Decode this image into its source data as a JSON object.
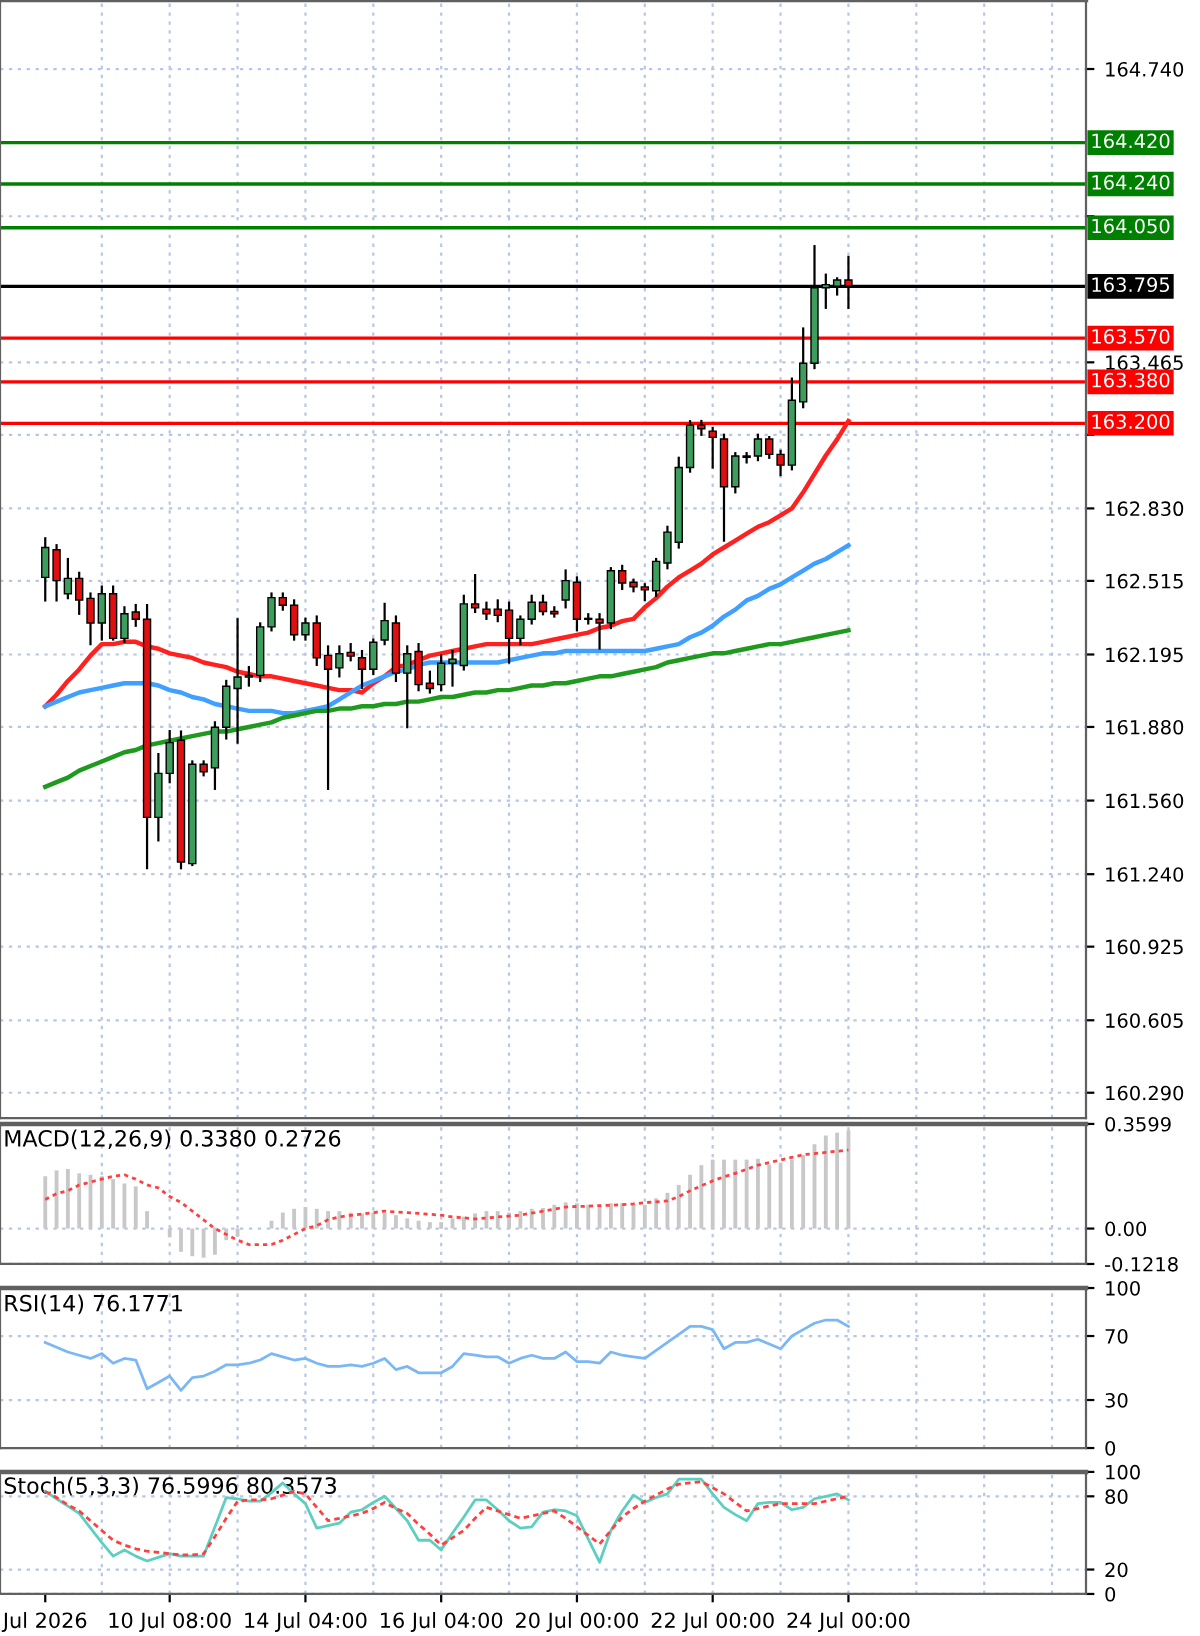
{
  "chart_data": [
    {
      "type": "candlestick",
      "categories": [
        null,
        null,
        null,
        null,
        null,
        null,
        null,
        null,
        null,
        null,
        null,
        null,
        null,
        null,
        null,
        null,
        null,
        null,
        null,
        null,
        null,
        null,
        null,
        null,
        null,
        null,
        null,
        null,
        null,
        null,
        null,
        null,
        null,
        null,
        null,
        null,
        null,
        null,
        null,
        null,
        null,
        null,
        null,
        null,
        null,
        null,
        null,
        null,
        null,
        null,
        null,
        null,
        null,
        null,
        null,
        null,
        null,
        null,
        null,
        null,
        null,
        null,
        null,
        null,
        null,
        null,
        null,
        null,
        null,
        null,
        null,
        null
      ],
      "ohlc": [
        [
          162.53,
          162.7,
          162.43,
          162.66
        ],
        [
          162.65,
          162.67,
          162.43,
          162.516
        ],
        [
          162.459,
          162.61,
          162.44,
          162.526
        ],
        [
          162.526,
          162.55,
          162.372,
          162.432
        ],
        [
          162.439,
          162.46,
          162.24,
          162.332
        ],
        [
          162.332,
          162.49,
          162.26,
          162.459
        ],
        [
          162.459,
          162.49,
          162.26,
          162.265
        ],
        [
          162.265,
          162.4,
          162.25,
          162.372
        ],
        [
          162.38,
          162.41,
          162.32,
          162.348
        ],
        [
          162.348,
          162.41,
          161.266,
          161.487
        ],
        [
          161.487,
          161.762,
          161.387,
          161.678
        ],
        [
          161.678,
          161.862,
          161.64,
          161.812
        ],
        [
          161.822,
          161.86,
          161.266,
          161.293
        ],
        [
          161.286,
          161.73,
          161.28,
          161.718
        ],
        [
          161.718,
          161.73,
          161.67,
          161.685
        ],
        [
          161.702,
          161.9,
          161.611,
          161.879
        ],
        [
          161.879,
          162.08,
          161.83,
          162.057
        ],
        [
          162.047,
          162.348,
          161.812,
          162.097
        ],
        [
          162.097,
          162.14,
          162.06,
          162.104
        ],
        [
          162.104,
          162.33,
          162.08,
          162.315
        ],
        [
          162.315,
          162.46,
          162.3,
          162.442
        ],
        [
          162.442,
          162.46,
          162.39,
          162.409
        ],
        [
          162.409,
          162.43,
          162.26,
          162.281
        ],
        [
          162.281,
          162.35,
          162.26,
          162.332
        ],
        [
          162.332,
          162.36,
          162.15,
          162.181
        ],
        [
          162.191,
          162.23,
          161.611,
          162.131
        ],
        [
          162.137,
          162.23,
          162.1,
          162.198
        ],
        [
          162.204,
          162.24,
          162.17,
          162.188
        ],
        [
          162.181,
          162.21,
          162.05,
          162.131
        ],
        [
          162.131,
          162.26,
          162.11,
          162.248
        ],
        [
          162.258,
          162.415,
          162.24,
          162.342
        ],
        [
          162.332,
          162.36,
          162.08,
          162.114
        ],
        [
          162.114,
          162.23,
          161.879,
          162.198
        ],
        [
          162.208,
          162.24,
          162.04,
          162.064
        ],
        [
          162.07,
          162.12,
          162.03,
          162.047
        ],
        [
          162.064,
          162.19,
          162.04,
          162.157
        ],
        [
          162.157,
          162.21,
          162.06,
          162.175
        ],
        [
          162.147,
          162.45,
          162.13,
          162.415
        ],
        [
          162.415,
          162.54,
          162.38,
          162.398
        ],
        [
          162.392,
          162.42,
          162.35,
          162.372
        ],
        [
          162.392,
          162.43,
          162.34,
          162.365
        ],
        [
          162.388,
          162.42,
          162.16,
          162.265
        ],
        [
          162.265,
          162.36,
          162.24,
          162.348
        ],
        [
          162.348,
          162.45,
          162.33,
          162.422
        ],
        [
          162.422,
          162.45,
          162.37,
          162.382
        ],
        [
          162.382,
          162.4,
          162.36,
          162.372
        ],
        [
          162.432,
          162.56,
          162.4,
          162.516
        ],
        [
          162.509,
          162.53,
          162.3,
          162.348
        ],
        [
          162.352,
          162.37,
          162.33,
          162.348
        ],
        [
          162.348,
          162.37,
          162.221,
          162.332
        ],
        [
          162.332,
          162.57,
          162.31,
          162.559
        ],
        [
          162.559,
          162.58,
          162.48,
          162.506
        ],
        [
          162.509,
          162.52,
          162.47,
          162.489
        ],
        [
          162.489,
          162.5,
          162.432,
          162.476
        ],
        [
          162.472,
          162.61,
          162.45,
          162.6
        ],
        [
          162.593,
          162.75,
          162.57,
          162.727
        ],
        [
          162.683,
          163.05,
          162.66,
          163.008
        ],
        [
          163.008,
          163.209,
          162.99,
          163.192
        ],
        [
          163.192,
          163.21,
          163.15,
          163.176
        ],
        [
          163.166,
          163.18,
          163.008,
          163.139
        ],
        [
          163.132,
          163.15,
          162.69,
          162.924
        ],
        [
          162.924,
          163.07,
          162.9,
          163.058
        ],
        [
          163.052,
          163.07,
          163.03,
          163.058
        ],
        [
          163.058,
          163.15,
          163.04,
          163.132
        ],
        [
          163.132,
          163.14,
          163.05,
          163.065
        ],
        [
          163.065,
          163.08,
          162.975,
          163.018
        ],
        [
          163.018,
          163.394,
          163.0,
          163.3
        ],
        [
          163.293,
          163.612,
          163.27,
          163.461
        ],
        [
          163.461,
          163.97,
          163.44,
          163.789
        ],
        [
          163.789,
          163.846,
          163.702,
          163.803
        ],
        [
          163.796,
          163.83,
          163.76,
          163.823
        ],
        [
          163.823,
          163.923,
          163.702,
          163.796
        ]
      ],
      "colors": [
        "#3c9d5d",
        "#e01010",
        "#3c9d5d",
        "#e01010",
        "#e01010",
        "#3c9d5d",
        "#e01010",
        "#3c9d5d",
        "#e01010",
        "#e01010",
        "#3c9d5d",
        "#3c9d5d",
        "#e01010",
        "#3c9d5d",
        "#e01010",
        "#3c9d5d",
        "#3c9d5d",
        "#3c9d5d",
        "#3c9d5d",
        "#3c9d5d",
        "#3c9d5d",
        "#e01010",
        "#e01010",
        "#3c9d5d",
        "#e01010",
        "#e01010",
        "#3c9d5d",
        "#e01010",
        "#e01010",
        "#3c9d5d",
        "#3c9d5d",
        "#e01010",
        "#3c9d5d",
        "#e01010",
        "#e01010",
        "#3c9d5d",
        "#3c9d5d",
        "#3c9d5d",
        "#e01010",
        "#e01010",
        "#e01010",
        "#e01010",
        "#3c9d5d",
        "#3c9d5d",
        "#e01010",
        "#e01010",
        "#3c9d5d",
        "#e01010",
        "#e01010",
        "#e01010",
        "#3c9d5d",
        "#e01010",
        "#e01010",
        "#e01010",
        "#3c9d5d",
        "#3c9d5d",
        "#3c9d5d",
        "#3c9d5d",
        "#e01010",
        "#e01010",
        "#e01010",
        "#3c9d5d",
        "#3c9d5d",
        "#3c9d5d",
        "#e01010",
        "#e01010",
        "#3c9d5d",
        "#3c9d5d",
        "#3c9d5d",
        "#3c9d5d",
        "#3c9d5d",
        "#e01010"
      ],
      "series": [
        {
          "type": "line",
          "color": "#ff2020",
          "values": [
            161.97,
            162.02,
            162.08,
            162.13,
            162.19,
            162.24,
            162.24,
            162.25,
            162.25,
            162.23,
            162.22,
            162.2,
            162.19,
            162.18,
            162.16,
            162.15,
            162.14,
            162.12,
            162.11,
            162.1,
            162.1,
            162.09,
            162.08,
            162.07,
            162.06,
            162.05,
            162.04,
            162.04,
            162.03,
            162.07,
            162.1,
            162.14,
            162.15,
            162.17,
            162.19,
            162.2,
            162.21,
            162.22,
            162.23,
            162.24,
            162.24,
            162.24,
            162.24,
            162.24,
            162.25,
            162.26,
            162.27,
            162.28,
            162.29,
            162.31,
            162.32,
            162.34,
            162.35,
            162.4,
            162.44,
            162.49,
            162.53,
            162.56,
            162.59,
            162.63,
            162.66,
            162.69,
            162.72,
            162.75,
            162.77,
            162.8,
            162.83,
            162.9,
            162.98,
            163.06,
            163.13,
            163.21
          ]
        },
        {
          "type": "line",
          "color": "#40a0ff",
          "values": [
            161.97,
            161.99,
            162.01,
            162.03,
            162.04,
            162.05,
            162.06,
            162.07,
            162.07,
            162.07,
            162.06,
            162.04,
            162.03,
            162.01,
            162.0,
            161.98,
            161.97,
            161.96,
            161.95,
            161.95,
            161.95,
            161.94,
            161.94,
            161.95,
            161.96,
            161.97,
            162.0,
            162.03,
            162.06,
            162.08,
            162.1,
            162.12,
            162.13,
            162.15,
            162.16,
            162.16,
            162.16,
            162.16,
            162.16,
            162.16,
            162.16,
            162.17,
            162.18,
            162.19,
            162.2,
            162.2,
            162.21,
            162.21,
            162.21,
            162.21,
            162.21,
            162.21,
            162.21,
            162.21,
            162.22,
            162.23,
            162.24,
            162.27,
            162.29,
            162.32,
            162.36,
            162.39,
            162.43,
            162.45,
            162.48,
            162.5,
            162.53,
            162.56,
            162.59,
            162.61,
            162.64,
            162.67
          ]
        },
        {
          "type": "line",
          "color": "#1f9a1f",
          "values": [
            161.62,
            161.64,
            161.66,
            161.69,
            161.71,
            161.73,
            161.75,
            161.77,
            161.78,
            161.8,
            161.81,
            161.82,
            161.83,
            161.84,
            161.85,
            161.86,
            161.86,
            161.87,
            161.88,
            161.89,
            161.9,
            161.92,
            161.93,
            161.94,
            161.95,
            161.95,
            161.96,
            161.96,
            161.97,
            161.97,
            161.98,
            161.98,
            161.99,
            161.99,
            162.0,
            162.01,
            162.01,
            162.02,
            162.03,
            162.03,
            162.04,
            162.04,
            162.05,
            162.06,
            162.06,
            162.07,
            162.07,
            162.08,
            162.09,
            162.1,
            162.1,
            162.11,
            162.12,
            162.13,
            162.14,
            162.16,
            162.17,
            162.18,
            162.19,
            162.2,
            162.2,
            162.21,
            162.22,
            162.23,
            162.24,
            162.24,
            162.25,
            162.26,
            162.27,
            162.28,
            162.29,
            162.3
          ]
        }
      ],
      "ref_lines": [
        {
          "axis": "y",
          "value": 164.42,
          "label": "164.420",
          "color": "#008000"
        },
        {
          "axis": "y",
          "value": 164.24,
          "label": "164.240",
          "color": "#008000"
        },
        {
          "axis": "y",
          "value": 164.05,
          "label": "164.050",
          "color": "#008000"
        },
        {
          "axis": "y",
          "value": 163.795,
          "label": "163.795",
          "color": "#000000"
        },
        {
          "axis": "y",
          "value": 163.57,
          "label": "163.570",
          "color": "#ff0000"
        },
        {
          "axis": "y",
          "value": 163.38,
          "label": "163.380",
          "color": "#ff0000"
        },
        {
          "axis": "y",
          "value": 163.2,
          "label": "163.200",
          "color": "#ff0000"
        }
      ],
      "ylim": [
        160.18,
        165.04
      ],
      "yticks": [
        {
          "value": 164.74,
          "label": "164.740"
        },
        {
          "value": 164.1,
          "label": null
        },
        {
          "value": 163.465,
          "label": "163.465"
        },
        {
          "value": 163.15,
          "label": null
        },
        {
          "value": 162.83,
          "label": "162.830"
        },
        {
          "value": 162.515,
          "label": "162.515"
        },
        {
          "value": 162.195,
          "label": "162.195"
        },
        {
          "value": 161.88,
          "label": "161.880"
        },
        {
          "value": 161.56,
          "label": "161.560"
        },
        {
          "value": 161.24,
          "label": "161.240"
        },
        {
          "value": 160.925,
          "label": "160.925"
        },
        {
          "value": 160.605,
          "label": "160.605"
        },
        {
          "value": 160.29,
          "label": "160.290"
        }
      ],
      "grid": true,
      "tick_labels": "y"
    },
    {
      "type": "bar",
      "title": "MACD(12,26,9) 0.3380 0.2726",
      "categories": [
        null,
        null,
        null,
        null,
        null,
        null,
        null,
        null,
        null,
        null,
        null,
        null,
        null,
        null,
        null,
        null,
        null,
        null,
        null,
        null,
        null,
        null,
        null,
        null,
        null,
        null,
        null,
        null,
        null,
        null,
        null,
        null,
        null,
        null,
        null,
        null,
        null,
        null,
        null,
        null,
        null,
        null,
        null,
        null,
        null,
        null,
        null,
        null,
        null,
        null,
        null,
        null,
        null,
        null,
        null,
        null,
        null,
        null,
        null,
        null,
        null,
        null,
        null,
        null,
        null,
        null,
        null,
        null,
        null,
        null,
        null,
        null
      ],
      "series": [
        {
          "type": "bar",
          "color": "#c8c8c8",
          "values": [
            0.18,
            0.2,
            0.205,
            0.19,
            0.185,
            0.18,
            0.17,
            0.155,
            0.145,
            0.06,
            null,
            -0.03,
            -0.08,
            -0.095,
            -0.1,
            -0.09,
            -0.04,
            -0.027,
            null,
            null,
            0.027,
            0.055,
            0.068,
            0.074,
            0.068,
            0.06,
            0.06,
            0.055,
            0.052,
            0.055,
            0.055,
            0.046,
            0.035,
            0.027,
            0.022,
            0.022,
            0.035,
            0.041,
            0.052,
            0.06,
            0.06,
            0.055,
            0.06,
            0.068,
            0.071,
            0.082,
            0.09,
            0.087,
            0.082,
            0.076,
            0.087,
            0.087,
            0.082,
            0.082,
            0.104,
            0.123,
            0.15,
            0.185,
            0.218,
            0.237,
            0.237,
            0.237,
            0.237,
            0.24,
            0.22,
            0.226,
            0.237,
            0.253,
            0.29,
            0.32,
            0.33,
            0.338
          ]
        },
        {
          "type": "line",
          "color": "#ff4040",
          "line_style": "dotted",
          "values": [
            0.1,
            0.12,
            0.13,
            0.15,
            0.16,
            0.17,
            0.18,
            0.185,
            0.17,
            0.15,
            0.14,
            0.11,
            0.09,
            0.06,
            0.03,
            0.0,
            -0.02,
            -0.04,
            -0.055,
            -0.055,
            -0.055,
            -0.04,
            -0.02,
            0.0,
            0.01,
            0.03,
            0.04,
            0.045,
            0.05,
            0.055,
            0.06,
            0.057,
            0.055,
            0.052,
            0.049,
            0.046,
            0.04,
            0.037,
            0.033,
            0.036,
            0.04,
            0.043,
            0.046,
            0.053,
            0.06,
            0.067,
            0.074,
            0.076,
            0.077,
            0.079,
            0.08,
            0.082,
            0.085,
            0.089,
            0.092,
            0.095,
            0.11,
            0.13,
            0.147,
            0.164,
            0.178,
            0.19,
            0.204,
            0.218,
            0.227,
            0.236,
            0.245,
            0.254,
            0.258,
            0.262,
            0.266,
            0.27
          ]
        }
      ],
      "ylim": [
        -0.1218,
        0.3599
      ],
      "yticks": [
        0.3599,
        {
          "value": 0,
          "label": "0.00"
        },
        -0.1218
      ],
      "grid": true,
      "tick_labels": "y"
    },
    {
      "type": "line",
      "title": "RSI(14) 76.1771",
      "categories": [
        null,
        null,
        null,
        null,
        null,
        null,
        null,
        null,
        null,
        null,
        null,
        null,
        null,
        null,
        null,
        null,
        null,
        null,
        null,
        null,
        null,
        null,
        null,
        null,
        null,
        null,
        null,
        null,
        null,
        null,
        null,
        null,
        null,
        null,
        null,
        null,
        null,
        null,
        null,
        null,
        null,
        null,
        null,
        null,
        null,
        null,
        null,
        null,
        null,
        null,
        null,
        null,
        null,
        null,
        null,
        null,
        null,
        null,
        null,
        null,
        null,
        null,
        null,
        null,
        null,
        null,
        null,
        null,
        null,
        null,
        null,
        null
      ],
      "series": [
        {
          "type": "line",
          "color": "#7ab8f5",
          "values": [
            66,
            63,
            60,
            58,
            56,
            59,
            53,
            56,
            55,
            37,
            41,
            45,
            36,
            44,
            45,
            48,
            52,
            52,
            53,
            55,
            59,
            57,
            55,
            56,
            53,
            51,
            51,
            52,
            51,
            53,
            56,
            49,
            51,
            47,
            47,
            47,
            51,
            59,
            58,
            57,
            57,
            53,
            56,
            58,
            56,
            56,
            60,
            54,
            54,
            53,
            60,
            58,
            57,
            56,
            61,
            66,
            71,
            76,
            76,
            74,
            62,
            66,
            66,
            68,
            65,
            62,
            70,
            74,
            78,
            80,
            80,
            76
          ]
        }
      ],
      "ylim": [
        0,
        100
      ],
      "yticks": [
        100,
        70,
        30,
        0
      ],
      "grid": true,
      "tick_labels": "y"
    },
    {
      "type": "line",
      "title": "Stoch(5,3,3) 76.5996 80.3573",
      "categories": [
        "Jul 2026",
        null,
        null,
        null,
        null,
        null,
        null,
        null,
        null,
        null,
        null,
        "10 Jul 08:00",
        null,
        null,
        null,
        null,
        null,
        null,
        null,
        null,
        null,
        null,
        null,
        "14 Jul 04:00",
        null,
        null,
        null,
        null,
        null,
        null,
        null,
        null,
        null,
        null,
        null,
        "16 Jul 04:00",
        null,
        null,
        null,
        null,
        null,
        null,
        null,
        null,
        null,
        null,
        null,
        "20 Jul 00:00",
        null,
        null,
        null,
        null,
        null,
        null,
        null,
        null,
        null,
        null,
        null,
        "22 Jul 00:00",
        null,
        null,
        null,
        null,
        null,
        null,
        null,
        null,
        null,
        null,
        null,
        "24 Jul 00:00"
      ],
      "series": [
        {
          "type": "line",
          "color": "#5ccfc0",
          "values": [
            84,
            78,
            72,
            66,
            54,
            42,
            31,
            36,
            31,
            27,
            30,
            33,
            31,
            31,
            31,
            55,
            79,
            78,
            76,
            76,
            83,
            91,
            82,
            74,
            54,
            56,
            58,
            67,
            69,
            75,
            80,
            70,
            60,
            44,
            44,
            36,
            50,
            63,
            77,
            77,
            69,
            60,
            54,
            55,
            67,
            69,
            68,
            64,
            45,
            26,
            52,
            68,
            81,
            75,
            79,
            82,
            94,
            94,
            94,
            82,
            71,
            65,
            60,
            74,
            75,
            75,
            69,
            71,
            78,
            80,
            82,
            77
          ]
        },
        {
          "type": "line",
          "color": "#ff4040",
          "line_style": "dashed",
          "values": [
            84,
            79,
            73,
            68,
            60,
            52,
            44,
            40,
            37,
            35,
            34,
            33,
            32,
            32,
            33,
            47,
            62,
            76,
            77,
            77,
            78,
            81,
            84,
            82,
            71,
            60,
            62,
            64,
            66,
            70,
            75,
            70,
            66,
            57,
            49,
            40,
            46,
            52,
            62,
            71,
            68,
            65,
            62,
            64,
            66,
            68,
            62,
            55,
            48,
            41,
            52,
            63,
            70,
            76,
            81,
            86,
            90,
            91,
            92,
            87,
            82,
            75,
            68,
            70,
            72,
            74,
            74,
            74,
            74,
            76,
            78,
            80
          ]
        }
      ],
      "ylim": [
        0,
        100
      ],
      "yticks": [
        100,
        80,
        20,
        0
      ],
      "grid": true
    }
  ]
}
